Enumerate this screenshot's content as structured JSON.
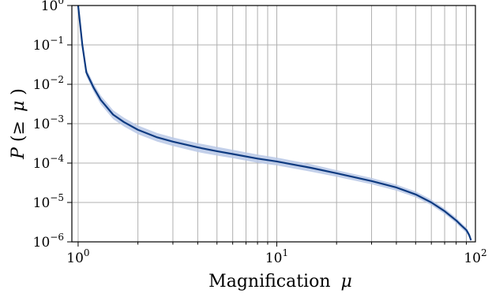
{
  "chart_data": {
    "type": "line",
    "xscale": "log",
    "yscale": "log",
    "xlim": [
      0.93,
      100
    ],
    "ylim": [
      1e-06,
      1
    ],
    "xlabel": {
      "text": "Magnification",
      "symbol": "μ"
    },
    "ylabel": {
      "lead": "P(≥",
      "symbol": "μ",
      "tail": ")"
    },
    "grid": true,
    "x_ticks": [
      {
        "base": "10",
        "exp": "0",
        "value": 1
      },
      {
        "base": "10",
        "exp": "1",
        "value": 10
      },
      {
        "base": "10",
        "exp": "2",
        "value": 100
      }
    ],
    "y_ticks": [
      {
        "base": "10",
        "exp": "0",
        "value": 1
      },
      {
        "base": "10",
        "exp": "−1",
        "value": 0.1
      },
      {
        "base": "10",
        "exp": "−2",
        "value": 0.01
      },
      {
        "base": "10",
        "exp": "−3",
        "value": 0.001
      },
      {
        "base": "10",
        "exp": "−4",
        "value": 0.0001
      },
      {
        "base": "10",
        "exp": "−5",
        "value": 1e-05
      },
      {
        "base": "10",
        "exp": "−6",
        "value": 1e-06
      }
    ],
    "line_color": "#0d3a80",
    "band_color": "#b8c8e6",
    "series": [
      {
        "x": [
          1.0,
          1.05,
          1.1,
          1.2,
          1.3,
          1.5,
          1.7,
          2.0,
          2.5,
          3.0,
          4.0,
          5.0,
          6.0,
          8.0,
          10.0,
          15.0,
          20.0,
          30.0,
          40.0,
          50.0,
          60.0,
          70.0,
          80.0,
          85.0,
          90.0,
          93.0,
          95.0
        ],
        "y": [
          1.0,
          0.1,
          0.02,
          0.008,
          0.004,
          0.0017,
          0.0011,
          0.0007,
          0.00045,
          0.00035,
          0.00025,
          0.0002,
          0.00017,
          0.00013,
          0.00011,
          7.5e-05,
          5.5e-05,
          3.5e-05,
          2.4e-05,
          1.6e-05,
          1e-05,
          6e-06,
          3.5e-06,
          2.6e-06,
          2e-06,
          1.5e-06,
          1.1e-06
        ],
        "y_lower": [
          1.0,
          0.085,
          0.016,
          0.0063,
          0.0031,
          0.0013,
          0.00085,
          0.00054,
          0.00035,
          0.00027,
          0.00019,
          0.000155,
          0.000133,
          0.000102,
          8.7e-05,
          6e-05,
          4.5e-05,
          2.9e-05,
          2e-05,
          1.35e-05,
          8.5e-06,
          5.1e-06,
          3e-06,
          2.2e-06,
          1.7e-06,
          1.3e-06,
          1e-06
        ],
        "y_upper": [
          1.0,
          0.118,
          0.025,
          0.0102,
          0.0052,
          0.0022,
          0.00142,
          0.0009,
          0.00058,
          0.00045,
          0.00032,
          0.000258,
          0.000218,
          0.000165,
          0.000138,
          9.3e-05,
          6.6e-05,
          4.2e-05,
          2.85e-05,
          1.9e-05,
          1.18e-05,
          7e-06,
          4.1e-06,
          3e-06,
          2.3e-06,
          1.7e-06,
          1.2e-06
        ]
      }
    ]
  }
}
